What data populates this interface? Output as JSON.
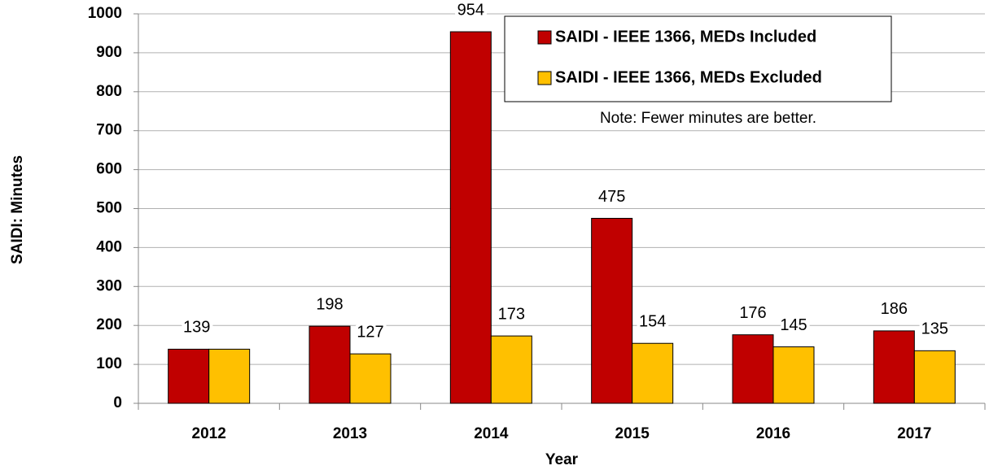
{
  "chart_data": {
    "type": "bar",
    "x_label": "Year",
    "y_label": "SAIDI: Minutes",
    "note": "Note:  Fewer minutes are better.",
    "categories": [
      "2012",
      "2013",
      "2014",
      "2015",
      "2016",
      "2017"
    ],
    "series": [
      {
        "name": "SAIDI - IEEE 1366, MEDs Included",
        "color": "#c00000",
        "values": [
          139,
          198,
          954,
          475,
          176,
          186
        ]
      },
      {
        "name": "SAIDI - IEEE 1366, MEDs Excluded",
        "color": "#ffc000",
        "values": [
          139,
          127,
          173,
          154,
          145,
          135
        ]
      }
    ],
    "ylim": [
      0,
      1000
    ],
    "yticks": [
      0,
      100,
      200,
      300,
      400,
      500,
      600,
      700,
      800,
      900,
      1000
    ],
    "grid": true,
    "legend": "top right"
  }
}
